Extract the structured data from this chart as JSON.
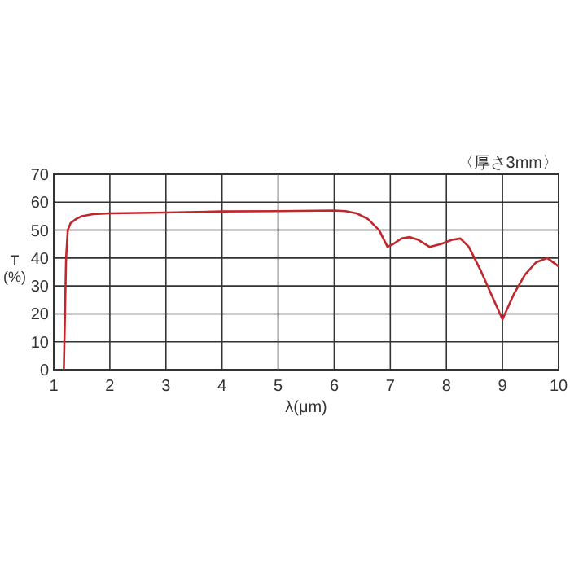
{
  "chart_data": {
    "type": "line",
    "xlabel": "λ(μm)",
    "ylabel": "T\n(%)",
    "annotations": [
      "〈厚さ3mm〉"
    ],
    "xlim": [
      1,
      10
    ],
    "xticks": [
      1,
      2,
      3,
      4,
      5,
      6,
      7,
      8,
      9,
      10
    ],
    "ylim": [
      0,
      70
    ],
    "yticks": [
      0,
      10,
      20,
      30,
      40,
      50,
      60,
      70
    ],
    "grid": true,
    "series": [
      {
        "color": "#c0272d",
        "x": [
          1.18,
          1.2,
          1.22,
          1.25,
          1.3,
          1.4,
          1.5,
          1.7,
          2,
          3,
          4,
          5,
          6,
          6.2,
          6.4,
          6.6,
          6.8,
          6.95,
          7.05,
          7.2,
          7.35,
          7.5,
          7.7,
          7.9,
          8.1,
          8.25,
          8.4,
          8.6,
          8.8,
          9,
          9.2,
          9.4,
          9.6,
          9.8,
          10
        ],
        "values": [
          0,
          20,
          40,
          50,
          52.5,
          54,
          55,
          55.7,
          56,
          56.3,
          56.7,
          56.8,
          57,
          56.8,
          56,
          54,
          50,
          44,
          45,
          47,
          47.5,
          46.5,
          44,
          45,
          46.5,
          47,
          44,
          36,
          27,
          18,
          27,
          34,
          38.5,
          40,
          37
        ]
      }
    ]
  }
}
